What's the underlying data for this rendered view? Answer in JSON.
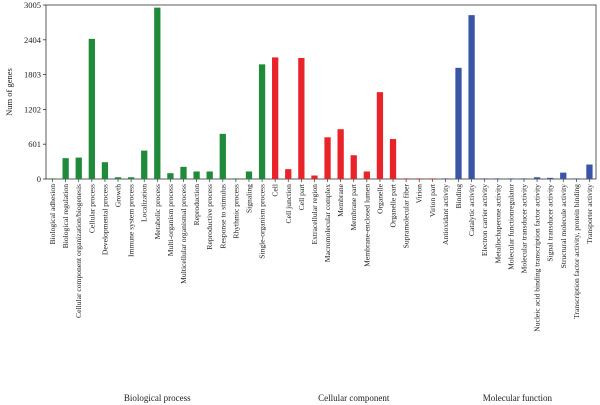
{
  "chart_data": {
    "type": "bar",
    "title": "",
    "xlabel": "",
    "ylabel": "Num of genes",
    "ylim": [
      0,
      3005
    ],
    "yticks": [
      0,
      601,
      1202,
      1803,
      2404,
      3005
    ],
    "grid": false,
    "legend": "none",
    "groups": [
      {
        "name": "Biological process",
        "color": "#1f8a3a"
      },
      {
        "name": "Cellular component",
        "color": "#e8242a"
      },
      {
        "name": "Molecular function",
        "color": "#3a55a6"
      }
    ],
    "categories": [
      "Biological adhesion",
      "Biological regulation",
      "Cellular component organization/biogenesis",
      "Cellular process",
      "Developmental process",
      "Growth",
      "Immune system process",
      "Localization",
      "Metabolic process",
      "Multi-organism process",
      "Multicellular organismal process",
      "Reproduction",
      "Reproductive process",
      "Response to stimulus",
      "Rhythmic process",
      "Signaling",
      "Single-organism process",
      "Cell",
      "Cell junction",
      "Cell part",
      "Extracellular region",
      "Macromolecular complex",
      "Membrane",
      "Membrane part",
      "Membrane-enclosed lumen",
      "Organelle",
      "Organelle part",
      "Supramolecular fiber",
      "Virion",
      "Virion part",
      "Antioxidant activity",
      "Binding",
      "Catalytic activity",
      "Electron carrier activity",
      "Metallochaperone activity",
      "Molecular functionregulator",
      "Molecular transducer activity",
      "Nucleic acid binding transcription factor activity",
      "Signal transducer activity",
      "Structural molecule activity",
      "Transcription factor activity, protein binding",
      "Transporter activity"
    ],
    "group_index": [
      0,
      0,
      0,
      0,
      0,
      0,
      0,
      0,
      0,
      0,
      0,
      0,
      0,
      0,
      0,
      0,
      0,
      1,
      1,
      1,
      1,
      1,
      1,
      1,
      1,
      1,
      1,
      1,
      1,
      1,
      2,
      2,
      2,
      2,
      2,
      2,
      2,
      2,
      2,
      2,
      2,
      2
    ],
    "values": [
      5,
      360,
      370,
      2420,
      290,
      30,
      30,
      490,
      2960,
      100,
      210,
      130,
      130,
      780,
      2,
      130,
      1980,
      2100,
      170,
      2090,
      60,
      720,
      860,
      410,
      130,
      1500,
      690,
      1,
      2,
      2,
      1,
      1920,
      2830,
      8,
      1,
      10,
      10,
      30,
      20,
      110,
      10,
      250
    ]
  }
}
